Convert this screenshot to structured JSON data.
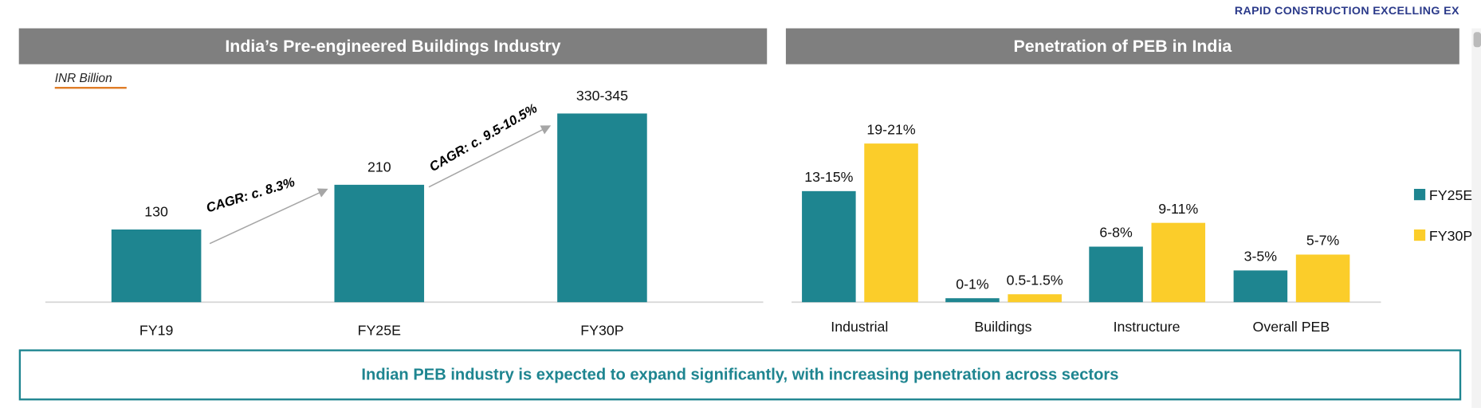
{
  "logo_text": "RAPID CONSTRUCTION EXCELLING EX",
  "colors": {
    "teal": "#1e8590",
    "yellow": "#fbcd2a",
    "header_gray": "#7f7f7f",
    "accent_orange": "#e07b24"
  },
  "chart_data": [
    {
      "type": "bar",
      "title": "India’s Pre-engineered Buildings Industry",
      "ylabel": "INR Billion",
      "categories": [
        "FY19",
        "FY25E",
        "FY30P"
      ],
      "values": [
        130,
        210,
        337.5
      ],
      "data_labels": [
        "130",
        "210",
        "330-345"
      ],
      "annotations": [
        "CAGR: c. 8.3%",
        "CAGR: c. 9.5-10.5%"
      ],
      "ylim": [
        0,
        540
      ],
      "grid": false
    },
    {
      "type": "bar",
      "title": "Penetration of PEB in India",
      "categories": [
        "Industrial",
        "Buildings",
        "Instructure",
        "Overall PEB"
      ],
      "series": [
        {
          "name": "FY25E",
          "values": [
            14,
            0.5,
            7,
            4
          ],
          "data_labels": [
            "13-15%",
            "0-1%",
            "6-8%",
            "3-5%"
          ]
        },
        {
          "name": "FY30P",
          "values": [
            20,
            1,
            10,
            6
          ],
          "data_labels": [
            "19-21%",
            "0.5-1.5%",
            "9-11%",
            "5-7%"
          ]
        }
      ],
      "legend_position": "right",
      "grid": false
    }
  ],
  "footer_text": "Indian PEB industry is expected to expand significantly, with increasing penetration across sectors"
}
